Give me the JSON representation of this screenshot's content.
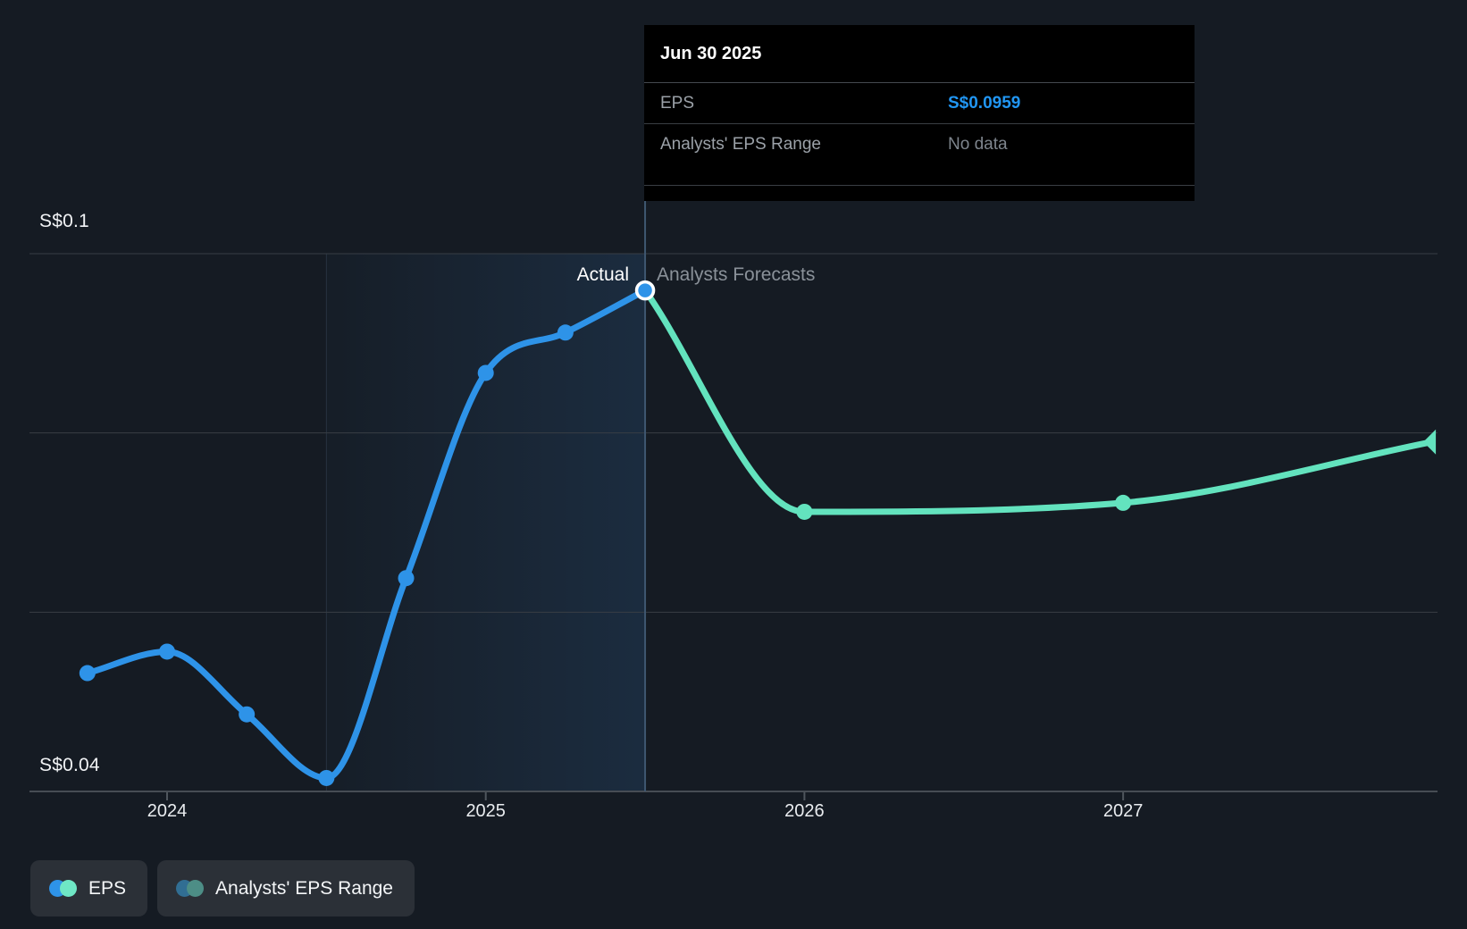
{
  "page": {
    "background": "#151B23"
  },
  "tooltip": {
    "date": "Jun 30 2025",
    "rows": [
      {
        "label": "EPS",
        "value": "S$0.0959",
        "value_color": "#2196F3"
      },
      {
        "label": "Analysts' EPS Range",
        "value": "No data",
        "value_color": "#7E858D"
      }
    ]
  },
  "chart_data": {
    "type": "line",
    "title": "EPS actual vs analysts forecast",
    "currency": "S$",
    "y_axis": {
      "top_label": "S$0.1",
      "bottom_label": "S$0.04",
      "min": 0.04,
      "max": 0.1,
      "grid_interval": 0.02
    },
    "x_axis": {
      "labels": [
        "2024",
        "2025",
        "2026",
        "2027"
      ],
      "tick_years": [
        2024,
        2025,
        2026,
        2027
      ]
    },
    "divider": {
      "date_t": 2025.5,
      "date_label": "Jun 30 2025",
      "actual_label": "Actual",
      "forecast_label": "Analysts Forecasts"
    },
    "highlight_band": {
      "from_t": 2024.5,
      "to_t": 2025.5
    },
    "series": [
      {
        "name": "EPS",
        "kind": "actual",
        "color": "#2E93E8",
        "points": [
          {
            "t": 2023.75,
            "v": 0.0532,
            "dot": true
          },
          {
            "t": 2024.0,
            "v": 0.0556,
            "dot": true
          },
          {
            "t": 2024.25,
            "v": 0.0486,
            "dot": true
          },
          {
            "t": 2024.5,
            "v": 0.0415,
            "dot": true
          },
          {
            "t": 2024.75,
            "v": 0.0638,
            "dot": true
          },
          {
            "t": 2025.0,
            "v": 0.0867,
            "dot": true
          },
          {
            "t": 2025.25,
            "v": 0.0912,
            "dot": true
          },
          {
            "t": 2025.5,
            "v": 0.0959,
            "dot": true,
            "highlight": true
          }
        ]
      },
      {
        "name": "Analysts Forecasts",
        "kind": "forecast",
        "color": "#63E3BE",
        "points": [
          {
            "t": 2025.5,
            "v": 0.0959,
            "dot": false
          },
          {
            "t": 2026.0,
            "v": 0.0712,
            "dot": true
          },
          {
            "t": 2027.0,
            "v": 0.0722,
            "dot": true
          },
          {
            "t": 2027.97,
            "v": 0.079,
            "dot": false,
            "arrow_end": true
          }
        ]
      }
    ]
  },
  "legend": {
    "items": [
      {
        "label": "EPS",
        "colors": [
          "#2E93E8",
          "#6FE7C5"
        ]
      },
      {
        "label": "Analysts' EPS Range",
        "colors": [
          "#316E93",
          "#4D8E86"
        ]
      }
    ]
  }
}
